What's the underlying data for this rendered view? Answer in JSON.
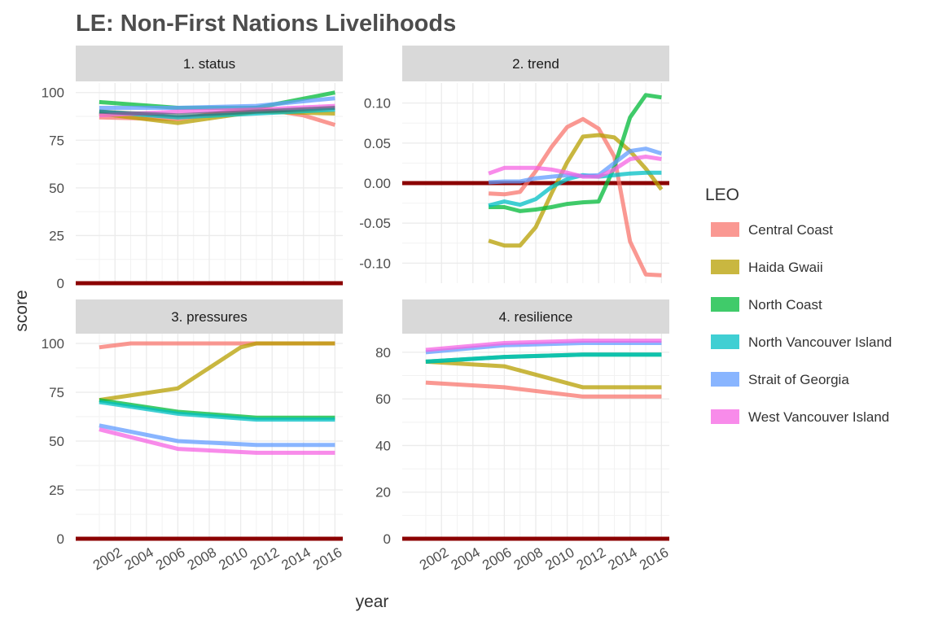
{
  "chart_data": {
    "type": "line",
    "title": "LE: Non-First Nations Livelihoods",
    "xlabel": "year",
    "ylabel": "score",
    "x_ticks": [
      2002,
      2004,
      2006,
      2008,
      2010,
      2012,
      2014,
      2016
    ],
    "baseline_color": "#8b0000",
    "legend": {
      "title": "LEO",
      "position": "right",
      "entries": [
        {
          "name": "Central Coast",
          "color": "#f8766d"
        },
        {
          "name": "Haida Gwaii",
          "color": "#b79f00"
        },
        {
          "name": "North Coast",
          "color": "#00ba38"
        },
        {
          "name": "North Vancouver Island",
          "color": "#00bfc4"
        },
        {
          "name": "Strait of Georgia",
          "color": "#619cff"
        },
        {
          "name": "West Vancouver Island",
          "color": "#f564e3"
        }
      ]
    },
    "panels": [
      {
        "label": "1. status",
        "xlim": [
          1999.5,
          2016.5
        ],
        "ylim": [
          0,
          105
        ],
        "y_ticks": [
          "0",
          "25",
          "50",
          "75",
          "100"
        ],
        "y_tick_values": [
          0,
          25,
          50,
          75,
          100
        ],
        "series": [
          {
            "name": "Central Coast",
            "x": [
              2001,
              2006,
              2010,
              2011,
              2014,
              2016
            ],
            "values": [
              87,
              86,
              91,
              92,
              88,
              83
            ]
          },
          {
            "name": "Haida Gwaii",
            "x": [
              2001,
              2006,
              2011,
              2016
            ],
            "values": [
              89,
              84,
              90,
              89
            ]
          },
          {
            "name": "North Coast",
            "x": [
              2001,
              2006,
              2011,
              2016
            ],
            "values": [
              95,
              92,
              92,
              100
            ]
          },
          {
            "name": "North Vancouver Island",
            "x": [
              2001,
              2006,
              2011,
              2016
            ],
            "values": [
              90,
              87,
              89,
              91
            ]
          },
          {
            "name": "Strait of Georgia",
            "x": [
              2001,
              2006,
              2011,
              2016
            ],
            "values": [
              92,
              92,
              93,
              97
            ]
          },
          {
            "name": "West Vancouver Island",
            "x": [
              2001,
              2006,
              2011,
              2016
            ],
            "values": [
              88,
              90,
              91,
              93
            ]
          },
          {
            "name": "dark-overlay",
            "x": [
              2001,
              2006,
              2011,
              2016
            ],
            "values": [
              90,
              88,
              90,
              92
            ]
          }
        ]
      },
      {
        "label": "2. trend",
        "xlim": [
          1999.5,
          2016.5
        ],
        "ylim": [
          -0.125,
          0.125
        ],
        "y_ticks": [
          "-0.10",
          "-0.05",
          "0.00",
          "0.05",
          "0.10"
        ],
        "y_tick_values": [
          -0.1,
          -0.05,
          0,
          0.05,
          0.1
        ],
        "series": [
          {
            "name": "Central Coast",
            "x": [
              2005,
              2006,
              2007,
              2008,
              2009,
              2010,
              2011,
              2012,
              2013,
              2014,
              2015,
              2016
            ],
            "values": [
              -0.013,
              -0.014,
              -0.011,
              0.015,
              0.045,
              0.07,
              0.08,
              0.068,
              0.033,
              -0.073,
              -0.114,
              -0.115
            ]
          },
          {
            "name": "Haida Gwaii",
            "x": [
              2005,
              2006,
              2007,
              2008,
              2009,
              2010,
              2011,
              2012,
              2013,
              2014,
              2015,
              2016
            ],
            "values": [
              -0.072,
              -0.078,
              -0.078,
              -0.055,
              -0.013,
              0.026,
              0.058,
              0.06,
              0.057,
              0.04,
              0.018,
              -0.008
            ]
          },
          {
            "name": "North Coast",
            "x": [
              2005,
              2006,
              2007,
              2008,
              2009,
              2010,
              2011,
              2012,
              2013,
              2014,
              2015,
              2016
            ],
            "values": [
              -0.03,
              -0.03,
              -0.035,
              -0.033,
              -0.03,
              -0.026,
              -0.024,
              -0.023,
              0.02,
              0.082,
              0.11,
              0.107
            ]
          },
          {
            "name": "North Vancouver Island",
            "x": [
              2005,
              2006,
              2007,
              2008,
              2009,
              2010,
              2011,
              2012,
              2013,
              2014,
              2015,
              2016
            ],
            "values": [
              -0.028,
              -0.023,
              -0.027,
              -0.02,
              -0.005,
              0.005,
              0.01,
              0.008,
              0.01,
              0.012,
              0.013,
              0.013
            ]
          },
          {
            "name": "Strait of Georgia",
            "x": [
              2005,
              2006,
              2007,
              2008,
              2009,
              2010,
              2011,
              2012,
              2013,
              2014,
              2015,
              2016
            ],
            "values": [
              0.001,
              0.002,
              0.002,
              0.006,
              0.008,
              0.01,
              0.009,
              0.01,
              0.025,
              0.04,
              0.043,
              0.037
            ]
          },
          {
            "name": "West Vancouver Island",
            "x": [
              2005,
              2006,
              2007,
              2008,
              2009,
              2010,
              2011,
              2012,
              2013,
              2014,
              2015,
              2016
            ],
            "values": [
              0.012,
              0.019,
              0.019,
              0.019,
              0.017,
              0.013,
              0.008,
              0.008,
              0.017,
              0.03,
              0.033,
              0.03
            ]
          }
        ]
      },
      {
        "label": "3. pressures",
        "xlim": [
          1999.5,
          2016.5
        ],
        "ylim": [
          0,
          105
        ],
        "y_ticks": [
          "0",
          "25",
          "50",
          "75",
          "100"
        ],
        "y_tick_values": [
          0,
          25,
          50,
          75,
          100
        ],
        "series": [
          {
            "name": "Central Coast",
            "x": [
              2001,
              2003,
              2006,
              2011,
              2016
            ],
            "values": [
              98,
              100,
              100,
              100,
              100
            ]
          },
          {
            "name": "Haida Gwaii",
            "x": [
              2001,
              2006,
              2010,
              2011,
              2016
            ],
            "values": [
              71,
              77,
              98,
              100,
              100
            ]
          },
          {
            "name": "North Coast",
            "x": [
              2001,
              2006,
              2011,
              2016
            ],
            "values": [
              71,
              65,
              62,
              62
            ]
          },
          {
            "name": "North Vancouver Island",
            "x": [
              2001,
              2006,
              2011,
              2016
            ],
            "values": [
              70,
              64,
              61,
              61
            ]
          },
          {
            "name": "Strait of Georgia",
            "x": [
              2001,
              2006,
              2011,
              2016
            ],
            "values": [
              58,
              50,
              48,
              48
            ]
          },
          {
            "name": "West Vancouver Island",
            "x": [
              2001,
              2006,
              2011,
              2016
            ],
            "values": [
              56,
              46,
              44,
              44
            ]
          }
        ]
      },
      {
        "label": "4. resilience",
        "xlim": [
          1999.5,
          2016.5
        ],
        "ylim": [
          0,
          88
        ],
        "y_ticks": [
          "0",
          "20",
          "40",
          "60",
          "80"
        ],
        "y_tick_values": [
          0,
          20,
          40,
          60,
          80
        ],
        "series": [
          {
            "name": "Central Coast",
            "x": [
              2001,
              2006,
              2011,
              2016
            ],
            "values": [
              67,
              65,
              61,
              61
            ]
          },
          {
            "name": "Haida Gwaii",
            "x": [
              2001,
              2006,
              2011,
              2016
            ],
            "values": [
              76,
              74,
              65,
              65
            ]
          },
          {
            "name": "North Coast",
            "x": [
              2001,
              2006,
              2011,
              2016
            ],
            "values": [
              76,
              78,
              79,
              79
            ]
          },
          {
            "name": "North Vancouver Island",
            "x": [
              2001,
              2006,
              2011,
              2016
            ],
            "values": [
              76,
              78,
              79,
              79
            ]
          },
          {
            "name": "Strait of Georgia",
            "x": [
              2001,
              2006,
              2011,
              2016
            ],
            "values": [
              80,
              83,
              84,
              84
            ]
          },
          {
            "name": "West Vancouver Island",
            "x": [
              2001,
              2006,
              2011,
              2016
            ],
            "values": [
              81,
              84,
              85,
              85
            ]
          }
        ]
      }
    ]
  }
}
